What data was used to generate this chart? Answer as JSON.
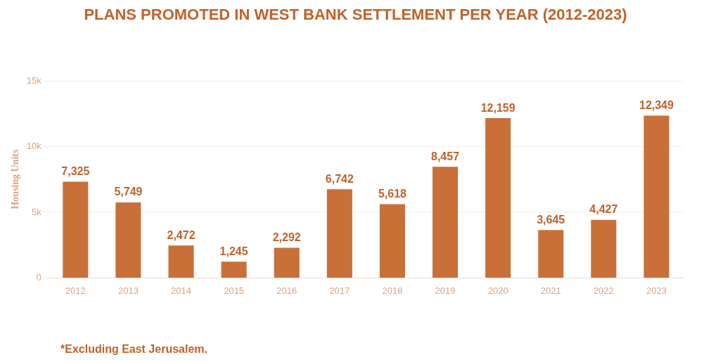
{
  "chart_data": {
    "type": "bar",
    "title": "PLANS PROMOTED IN WEST BANK SETTLEMENT PER YEAR (2012-2023)",
    "ylabel": "Housing Units",
    "categories": [
      "2012",
      "2013",
      "2014",
      "2015",
      "2016",
      "2017",
      "2018",
      "2019",
      "2020",
      "2021",
      "2022",
      "2023"
    ],
    "values": [
      7325,
      5749,
      2472,
      1245,
      2292,
      6742,
      5618,
      8457,
      12159,
      3645,
      4427,
      12349
    ],
    "color": "#c87038",
    "ylim": [
      0,
      15000
    ],
    "yticks": [
      0,
      {
        "value": 5000,
        "label": "5k"
      },
      {
        "value": 10000,
        "label": "10k"
      },
      {
        "value": 15000,
        "label": "15k"
      }
    ],
    "value_labels": [
      "7,325",
      "5,749",
      "2,472",
      "1,245",
      "2,292",
      "6,742",
      "5,618",
      "8,457",
      "12,159",
      "3,645",
      "4,427",
      "12,349"
    ],
    "grid": "y",
    "legend": false,
    "annotations": [
      "*Excluding East Jerusalem."
    ]
  }
}
